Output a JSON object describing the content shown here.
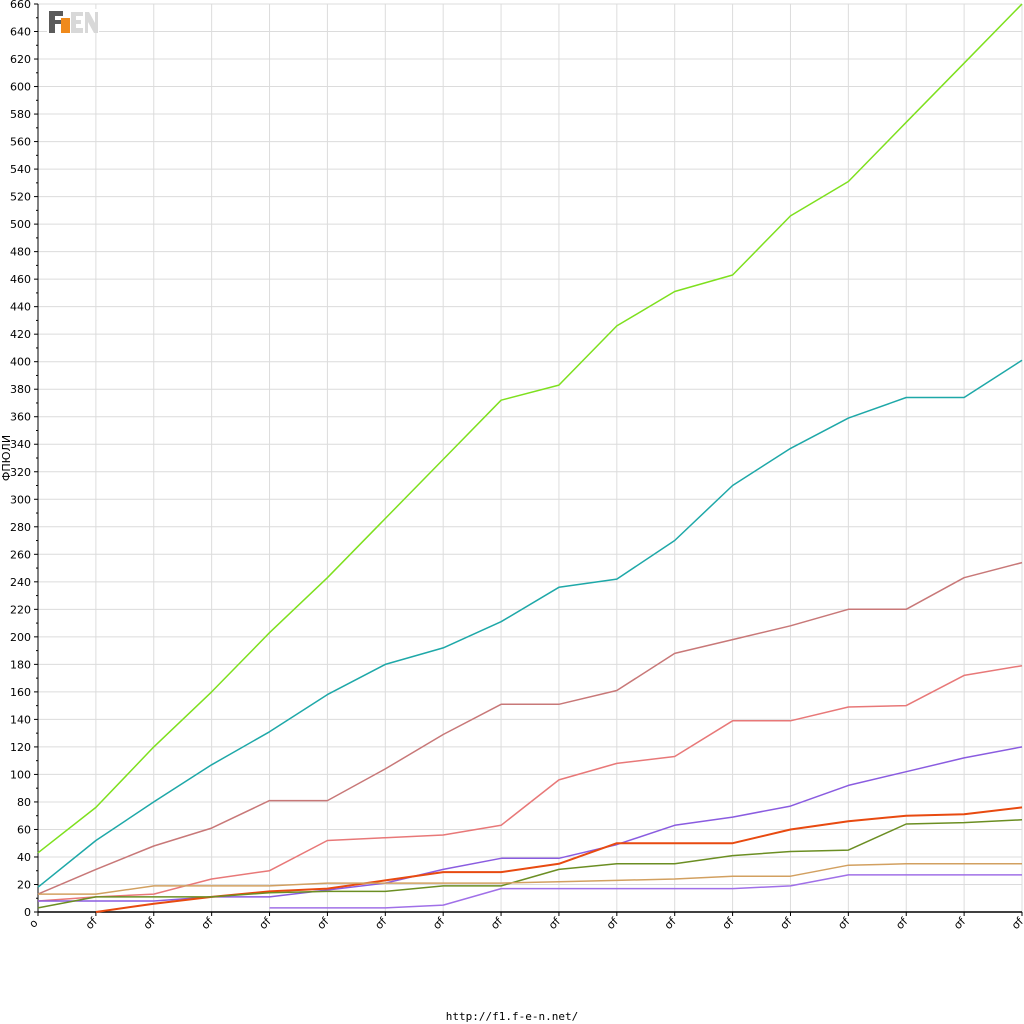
{
  "footer": {
    "url": "http://f1.f-e-n.net/"
  },
  "logo": {
    "text": "F1EN",
    "colors": {
      "dark": "#5a5a5a",
      "orange": "#f08a1c",
      "light": "#d8d8d8"
    }
  },
  "chart_data": {
    "type": "line",
    "title": "",
    "ylabel": "ФПЮЛИ",
    "xlabel": "",
    "ylim": [
      0,
      660
    ],
    "ytick_step": 20,
    "grid": true,
    "x_tick_labels": [
      "o",
      "σf",
      "σf",
      "σf",
      "σf",
      "σf",
      "σf",
      "σf",
      "σf",
      "σf",
      "σf",
      "σf",
      "σf",
      "σf",
      "σf",
      "σf",
      "σf",
      "σf"
    ],
    "x": [
      0,
      1,
      2,
      3,
      4,
      5,
      6,
      7,
      8,
      9,
      10,
      11,
      12,
      13,
      14,
      15,
      16,
      17
    ],
    "series": [
      {
        "color": "#7ee01e",
        "width": 1.5,
        "values": [
          43,
          76,
          120,
          160,
          203,
          243,
          286,
          329,
          372,
          383,
          426,
          451,
          463,
          506,
          531,
          574,
          617,
          660
        ]
      },
      {
        "color": "#1ea8a8",
        "width": 1.5,
        "values": [
          18,
          52,
          80,
          107,
          131,
          158,
          180,
          192,
          211,
          236,
          242,
          270,
          310,
          337,
          359,
          374,
          374,
          401
        ]
      },
      {
        "color": "#c87878",
        "width": 1.5,
        "values": [
          13,
          31,
          48,
          61,
          81,
          81,
          104,
          129,
          151,
          151,
          161,
          188,
          198,
          208,
          220,
          220,
          243,
          254
        ]
      },
      {
        "color": "#e87878",
        "width": 1.5,
        "values": [
          8,
          11,
          13,
          24,
          30,
          52,
          54,
          56,
          63,
          96,
          108,
          113,
          139,
          139,
          149,
          150,
          172,
          179
        ]
      },
      {
        "color": "#8a5ce0",
        "width": 1.5,
        "values": [
          8,
          8,
          8,
          11,
          11,
          16,
          21,
          31,
          39,
          39,
          49,
          63,
          69,
          77,
          92,
          102,
          112,
          120
        ]
      },
      {
        "color": "#e84a10",
        "width": 2,
        "values": [
          null,
          0,
          6,
          11,
          15,
          17,
          23,
          29,
          29,
          35,
          50,
          50,
          50,
          60,
          66,
          70,
          71,
          76
        ]
      },
      {
        "color": "#6b8e23",
        "width": 1.5,
        "values": [
          3,
          11,
          11,
          11,
          14,
          15,
          15,
          19,
          19,
          31,
          35,
          35,
          41,
          44,
          45,
          64,
          65,
          67
        ]
      },
      {
        "color": "#d2a060",
        "width": 1.5,
        "values": [
          13,
          13,
          19,
          19,
          19,
          21,
          21,
          21,
          21,
          22,
          23,
          24,
          26,
          26,
          34,
          35,
          35,
          35
        ]
      },
      {
        "color": "#a070e8",
        "width": 1.5,
        "values": [
          null,
          null,
          null,
          null,
          3,
          3,
          3,
          5,
          17,
          17,
          17,
          17,
          17,
          19,
          27,
          27,
          27,
          27
        ]
      }
    ]
  }
}
